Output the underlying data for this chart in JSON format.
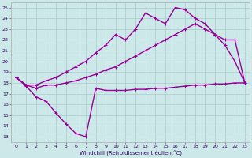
{
  "xlabel": "Windchill (Refroidissement éolien,°C)",
  "x_ticks": [
    0,
    1,
    2,
    3,
    4,
    5,
    6,
    7,
    8,
    9,
    10,
    11,
    12,
    13,
    14,
    15,
    16,
    17,
    18,
    19,
    20,
    21,
    22,
    23
  ],
  "y_ticks": [
    13,
    14,
    15,
    16,
    17,
    18,
    19,
    20,
    21,
    22,
    23,
    24,
    25
  ],
  "ylim": [
    12.5,
    25.5
  ],
  "xlim": [
    -0.5,
    23.5
  ],
  "bg_color": "#cce8e8",
  "grid_color": "#aacccc",
  "line_color": "#990099",
  "line_width": 1.0,
  "markersize": 2.5,
  "series1_x": [
    0,
    1,
    2,
    3,
    4,
    5,
    6,
    7,
    8,
    9,
    10,
    11,
    12,
    13,
    14,
    15,
    16,
    17,
    18,
    19,
    20,
    21,
    22,
    23
  ],
  "series1_y": [
    18.5,
    17.7,
    16.7,
    16.3,
    15.2,
    14.2,
    13.3,
    13.0,
    17.5,
    17.3,
    17.3,
    17.3,
    17.4,
    17.4,
    17.5,
    17.5,
    17.6,
    17.7,
    17.8,
    17.8,
    17.9,
    17.9,
    18.0,
    18.0
  ],
  "series2_x": [
    0,
    1,
    2,
    3,
    4,
    5,
    6,
    7,
    8,
    9,
    10,
    11,
    12,
    13,
    14,
    15,
    16,
    17,
    18,
    19,
    20,
    21,
    22,
    23
  ],
  "series2_y": [
    18.5,
    17.8,
    17.5,
    17.8,
    17.8,
    18.0,
    18.2,
    18.5,
    18.8,
    19.2,
    19.5,
    20.0,
    20.5,
    21.0,
    21.5,
    22.0,
    22.5,
    23.0,
    23.5,
    23.0,
    22.5,
    22.0,
    22.0,
    18.0
  ],
  "series3_x": [
    0,
    1,
    2,
    3,
    4,
    5,
    6,
    7,
    8,
    9,
    10,
    11,
    12,
    13,
    14,
    15,
    16,
    17,
    18,
    19,
    20,
    21,
    22,
    23
  ],
  "series3_y": [
    18.5,
    17.8,
    17.8,
    18.2,
    18.5,
    19.0,
    19.5,
    20.0,
    20.8,
    21.5,
    22.5,
    22.0,
    23.0,
    24.5,
    24.0,
    23.5,
    25.0,
    24.8,
    24.0,
    23.5,
    22.5,
    21.5,
    20.0,
    18.0
  ]
}
